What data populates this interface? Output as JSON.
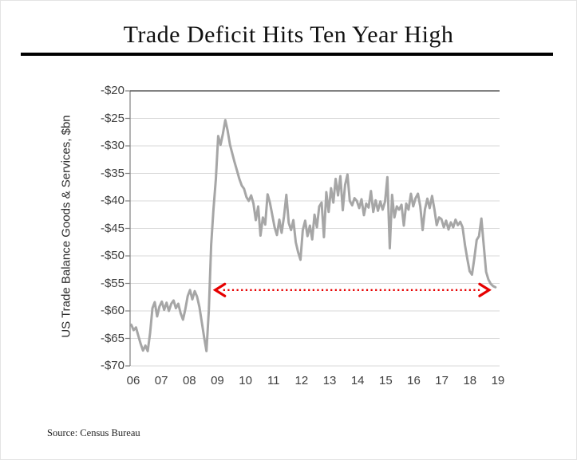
{
  "title": "Trade Deficit Hits Ten Year High",
  "source": "Source: Census Bureau",
  "y_axis": {
    "title": "US Trade Balance Goods & Services, $bn"
  },
  "chart_data": {
    "type": "line",
    "title": "Trade Deficit Hits Ten Year High",
    "xlabel": "",
    "ylabel": "US Trade Balance Goods & Services, $bn",
    "ylim": [
      -70,
      -20
    ],
    "grid": "horizontal",
    "legend": "none",
    "x_start_year": 2006,
    "frequency": "monthly",
    "x_tick_labels": [
      "06",
      "07",
      "08",
      "09",
      "10",
      "11",
      "12",
      "13",
      "14",
      "15",
      "16",
      "17",
      "18",
      "19"
    ],
    "y_tick_labels": [
      "-$20",
      "-$25",
      "-$30",
      "-$35",
      "-$40",
      "-$45",
      "-$50",
      "-$55",
      "-$60",
      "-$65",
      "-$70"
    ],
    "y_tick_values": [
      -20,
      -25,
      -30,
      -35,
      -40,
      -45,
      -50,
      -55,
      -60,
      -65,
      -70
    ],
    "series": [
      {
        "name": "US Trade Balance Goods & Services ($bn, monthly)",
        "color": "#a6a6a6",
        "values": [
          -62.5,
          -63.5,
          -63.0,
          -64.5,
          -66.0,
          -67.2,
          -66.3,
          -67.3,
          -64.0,
          -59.5,
          -58.4,
          -61.0,
          -59.2,
          -58.3,
          -59.8,
          -58.5,
          -60.0,
          -58.7,
          -58.1,
          -59.5,
          -58.7,
          -60.4,
          -61.6,
          -59.7,
          -57.3,
          -56.2,
          -57.9,
          -56.4,
          -57.4,
          -59.3,
          -62.0,
          -64.8,
          -67.3,
          -59.8,
          -48.0,
          -41.5,
          -36.0,
          -28.2,
          -29.8,
          -27.8,
          -25.3,
          -27.2,
          -29.8,
          -31.4,
          -33.0,
          -34.5,
          -36.0,
          -37.2,
          -37.8,
          -39.3,
          -40.0,
          -39.0,
          -40.5,
          -43.5,
          -41.0,
          -46.3,
          -43.0,
          -44.3,
          -38.8,
          -40.3,
          -42.5,
          -44.8,
          -46.2,
          -43.4,
          -45.8,
          -42.8,
          -38.9,
          -44.0,
          -45.3,
          -43.5,
          -47.5,
          -49.3,
          -50.7,
          -45.3,
          -43.6,
          -46.4,
          -44.5,
          -47.0,
          -42.5,
          -44.8,
          -41.0,
          -40.3,
          -46.6,
          -38.4,
          -42.0,
          -37.7,
          -40.3,
          -36.0,
          -39.0,
          -35.5,
          -41.7,
          -37.1,
          -35.2,
          -40.0,
          -40.8,
          -39.5,
          -40.0,
          -41.3,
          -39.7,
          -42.6,
          -40.5,
          -41.2,
          -38.2,
          -42.0,
          -39.9,
          -41.8,
          -40.1,
          -41.6,
          -40.1,
          -35.7,
          -48.6,
          -38.9,
          -43.0,
          -41.0,
          -41.6,
          -40.7,
          -44.5,
          -40.5,
          -41.6,
          -38.7,
          -41.0,
          -39.5,
          -38.7,
          -41.0,
          -45.3,
          -41.5,
          -39.6,
          -41.3,
          -39.1,
          -41.5,
          -44.4,
          -43.0,
          -43.3,
          -44.8,
          -43.6,
          -45.2,
          -43.9,
          -44.8,
          -43.4,
          -44.4,
          -43.8,
          -44.8,
          -48.0,
          -50.5,
          -52.8,
          -53.4,
          -50.5,
          -47.1,
          -46.4,
          -43.2,
          -48.0,
          -52.9,
          -54.3,
          -55.1,
          -55.5,
          -55.7
        ]
      }
    ],
    "annotation": {
      "type": "double-headed-dotted-arrow",
      "color": "#e60000",
      "y_value": -56.2,
      "x_start_year": 2008.95,
      "x_end_year": 2018.72
    },
    "axis_colors": {
      "axis": "#808080",
      "top_axis": "#595959",
      "grid": "#d9d9d9",
      "tick_text": "#404040"
    }
  }
}
